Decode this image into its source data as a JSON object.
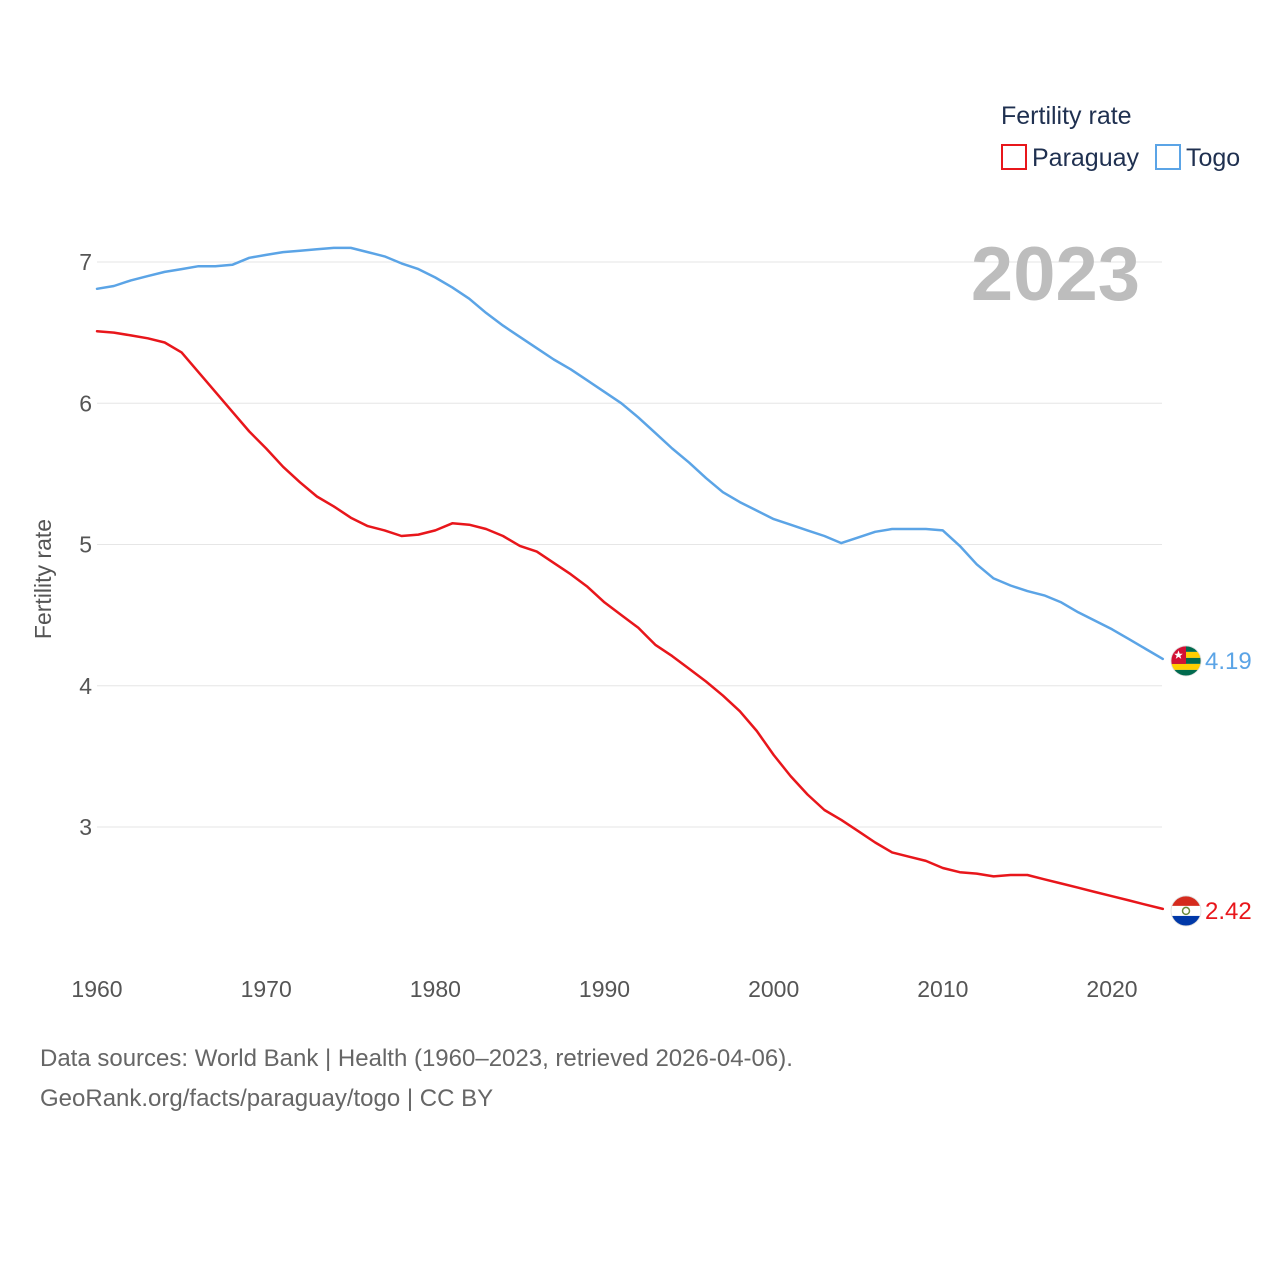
{
  "chart_data": {
    "type": "line",
    "title": "",
    "xlabel": "",
    "ylabel": "Fertility rate",
    "xlim": [
      1960,
      2023
    ],
    "ylim": [
      2.1,
      7.3
    ],
    "x_ticks": [
      1960,
      1970,
      1980,
      1990,
      2000,
      2010,
      2020
    ],
    "y_ticks": [
      3,
      4,
      5,
      6,
      7
    ],
    "year_display": "2023",
    "legend": {
      "title": "Fertility rate",
      "position": "top-right"
    },
    "x": [
      1960,
      1961,
      1962,
      1963,
      1964,
      1965,
      1966,
      1967,
      1968,
      1969,
      1970,
      1971,
      1972,
      1973,
      1974,
      1975,
      1976,
      1977,
      1978,
      1979,
      1980,
      1981,
      1982,
      1983,
      1984,
      1985,
      1986,
      1987,
      1988,
      1989,
      1990,
      1991,
      1992,
      1993,
      1994,
      1995,
      1996,
      1997,
      1998,
      1999,
      2000,
      2001,
      2002,
      2003,
      2004,
      2005,
      2006,
      2007,
      2008,
      2009,
      2010,
      2011,
      2012,
      2013,
      2014,
      2015,
      2016,
      2017,
      2018,
      2019,
      2020,
      2021,
      2022,
      2023
    ],
    "series": [
      {
        "name": "Paraguay",
        "color": "#e8161b",
        "end_label": "2.42",
        "flag": "paraguay-flag",
        "values": [
          6.51,
          6.5,
          6.48,
          6.46,
          6.43,
          6.36,
          6.22,
          6.08,
          5.94,
          5.8,
          5.68,
          5.55,
          5.44,
          5.34,
          5.27,
          5.19,
          5.13,
          5.1,
          5.06,
          5.07,
          5.1,
          5.15,
          5.14,
          5.11,
          5.06,
          4.99,
          4.95,
          4.87,
          4.79,
          4.7,
          4.59,
          4.5,
          4.41,
          4.29,
          4.21,
          4.12,
          4.03,
          3.93,
          3.82,
          3.68,
          3.51,
          3.36,
          3.23,
          3.12,
          3.05,
          2.97,
          2.89,
          2.82,
          2.79,
          2.76,
          2.71,
          2.68,
          2.67,
          2.65,
          2.66,
          2.66,
          2.63,
          2.6,
          2.57,
          2.54,
          2.51,
          2.48,
          2.45,
          2.42
        ]
      },
      {
        "name": "Togo",
        "color": "#5ba4e6",
        "end_label": "4.19",
        "flag": "togo-flag",
        "values": [
          6.81,
          6.83,
          6.87,
          6.9,
          6.93,
          6.95,
          6.97,
          6.97,
          6.98,
          7.03,
          7.05,
          7.07,
          7.08,
          7.09,
          7.1,
          7.1,
          7.07,
          7.04,
          6.99,
          6.95,
          6.89,
          6.82,
          6.74,
          6.64,
          6.55,
          6.47,
          6.39,
          6.31,
          6.24,
          6.16,
          6.08,
          6.0,
          5.9,
          5.79,
          5.68,
          5.58,
          5.47,
          5.37,
          5.3,
          5.24,
          5.18,
          5.14,
          5.1,
          5.06,
          5.01,
          5.05,
          5.09,
          5.11,
          5.11,
          5.11,
          5.1,
          4.99,
          4.86,
          4.76,
          4.71,
          4.67,
          4.64,
          4.59,
          4.52,
          4.46,
          4.4,
          4.33,
          4.26,
          4.19
        ]
      }
    ]
  },
  "footer": {
    "sources": "Data sources: World Bank | Health (1960–2023, retrieved 2026-04-06).",
    "url": "GeoRank.org/facts/paraguay/togo | CC BY"
  }
}
